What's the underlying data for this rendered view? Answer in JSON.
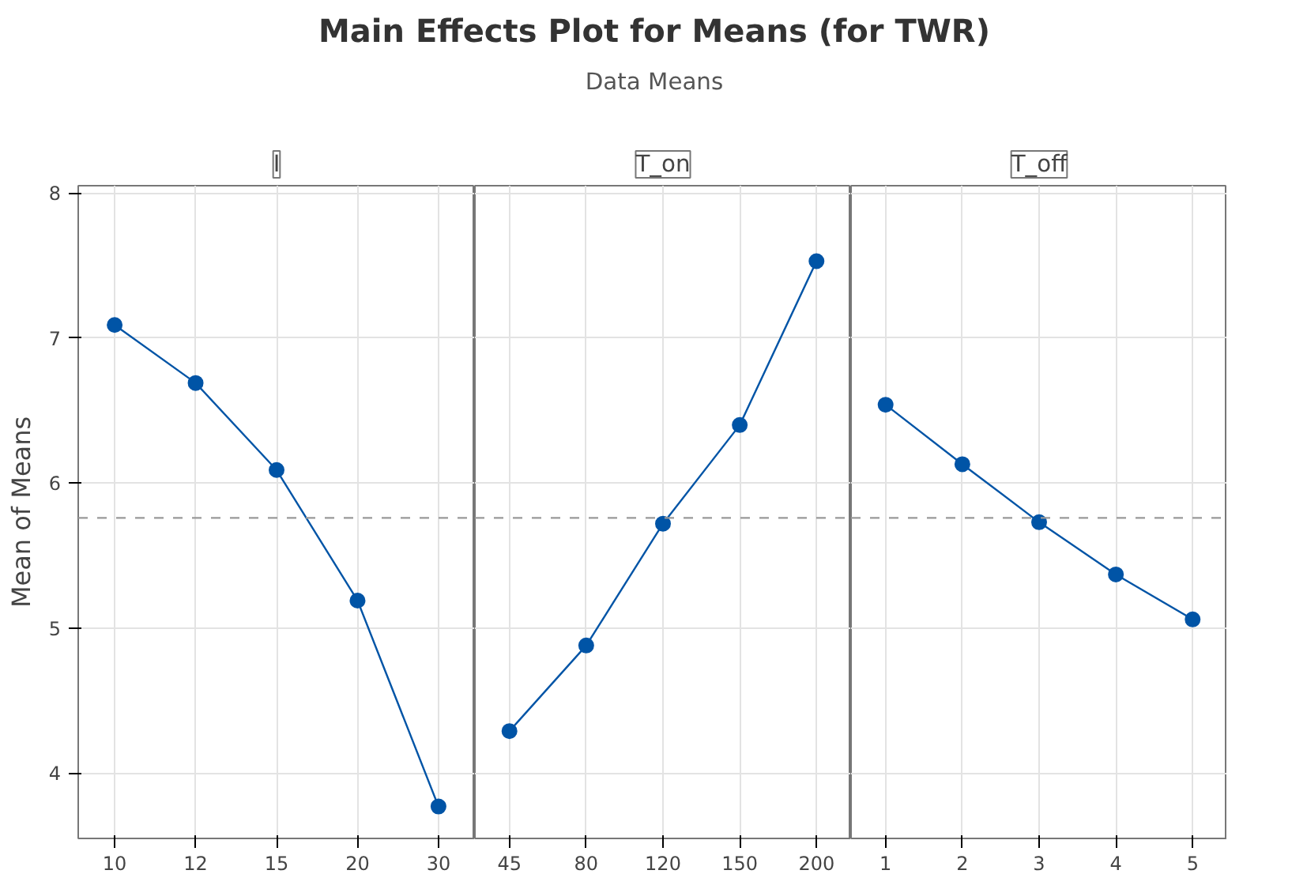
{
  "chart_data": [
    {
      "type": "other",
      "title": "Main Effects Plot for Means (for TWR)",
      "subtitle": "Data Means"
    },
    {
      "type": "line",
      "title": "I",
      "ylabel": "Mean of Means",
      "categories": [
        "10",
        "12",
        "15",
        "20",
        "30"
      ],
      "values": [
        7.09,
        6.69,
        6.09,
        5.19,
        3.77
      ],
      "color": "#0054a6",
      "ylim": [
        3.55,
        8.05
      ],
      "yticks": [
        4,
        5,
        6,
        7,
        8
      ],
      "grid": true,
      "marker": "circle",
      "line_style": "solid",
      "ref_lines": [
        {
          "axis": "y",
          "value": 5.76,
          "color": "#999999",
          "line_style": "dashed"
        }
      ]
    },
    {
      "type": "line",
      "title": "T_on",
      "categories": [
        "45",
        "80",
        "120",
        "150",
        "200"
      ],
      "values": [
        4.29,
        4.88,
        5.72,
        6.4,
        7.53
      ],
      "color": "#0054a6",
      "ylim": [
        3.55,
        8.05
      ],
      "yticks": [
        4,
        5,
        6,
        7,
        8
      ],
      "tick_labels": "x",
      "grid": true,
      "marker": "circle",
      "line_style": "solid",
      "ref_lines": [
        {
          "axis": "y",
          "value": 5.76,
          "color": "#999999",
          "line_style": "dashed"
        }
      ]
    },
    {
      "type": "line",
      "title": "T_off",
      "categories": [
        "1",
        "2",
        "3",
        "4",
        "5"
      ],
      "values": [
        6.54,
        6.13,
        5.73,
        5.37,
        5.06
      ],
      "color": "#0054a6",
      "ylim": [
        3.55,
        8.05
      ],
      "yticks": [
        4,
        5,
        6,
        7,
        8
      ],
      "tick_labels": "x",
      "grid": true,
      "marker": "circle",
      "line_style": "solid",
      "ref_lines": [
        {
          "axis": "y",
          "value": 5.76,
          "color": "#999999",
          "line_style": "dashed"
        }
      ]
    }
  ]
}
